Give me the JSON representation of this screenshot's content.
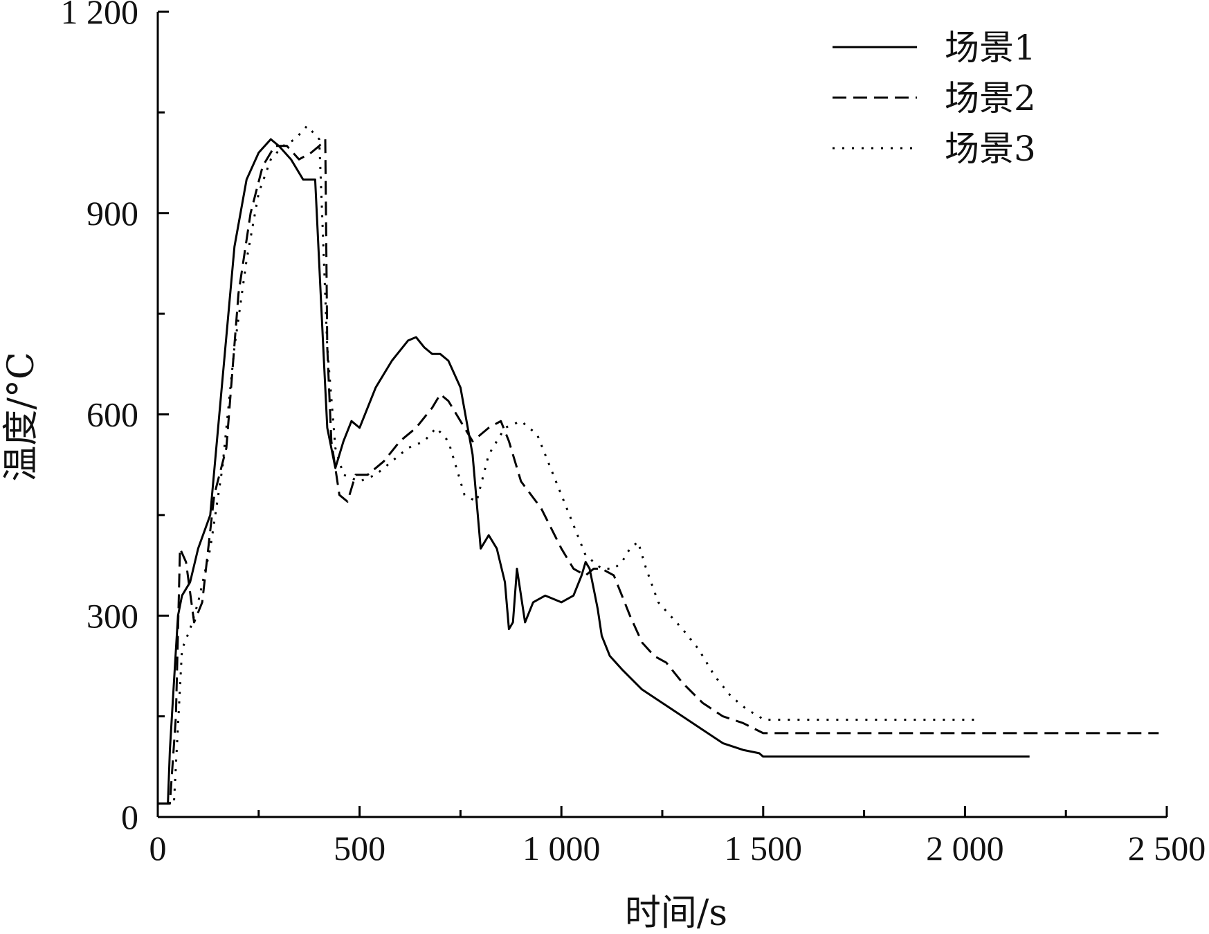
{
  "chart_data": {
    "type": "line",
    "xlabel": "时间/s",
    "ylabel": "温度/°C",
    "xlim": [
      0,
      2500
    ],
    "ylim": [
      0,
      1200
    ],
    "x_ticks": [
      0,
      500,
      1000,
      1500,
      2000,
      2500
    ],
    "x_tick_labels": [
      "0",
      "500",
      "1 000",
      "1 500",
      "2 000",
      "2 500"
    ],
    "y_ticks": [
      0,
      300,
      600,
      900,
      1200
    ],
    "y_tick_labels": [
      "0",
      "300",
      "600",
      "900",
      "1 200"
    ],
    "grid": false,
    "legend_position": "top-right",
    "series": [
      {
        "name": "场景1",
        "style": "solid",
        "x": [
          0,
          25,
          30,
          40,
          50,
          60,
          80,
          100,
          130,
          160,
          190,
          220,
          250,
          280,
          300,
          330,
          360,
          390,
          410,
          420,
          440,
          460,
          480,
          500,
          540,
          580,
          620,
          640,
          660,
          680,
          700,
          720,
          750,
          780,
          800,
          820,
          840,
          860,
          870,
          880,
          890,
          910,
          930,
          960,
          1000,
          1030,
          1050,
          1060,
          1070,
          1080,
          1090,
          1100,
          1120,
          1150,
          1200,
          1250,
          1300,
          1350,
          1400,
          1450,
          1490,
          1500,
          2160
        ],
        "y": [
          20,
          20,
          100,
          200,
          300,
          330,
          350,
          400,
          450,
          650,
          850,
          950,
          990,
          1010,
          1000,
          980,
          950,
          950,
          700,
          580,
          520,
          560,
          590,
          580,
          640,
          680,
          710,
          715,
          700,
          690,
          690,
          680,
          640,
          540,
          400,
          420,
          400,
          350,
          280,
          290,
          370,
          290,
          320,
          330,
          320,
          330,
          360,
          380,
          370,
          340,
          310,
          270,
          240,
          220,
          190,
          170,
          150,
          130,
          110,
          100,
          95,
          90,
          90
        ]
      },
      {
        "name": "场景2",
        "style": "dashed",
        "x": [
          0,
          30,
          45,
          55,
          70,
          90,
          110,
          140,
          170,
          200,
          230,
          260,
          290,
          320,
          350,
          380,
          400,
          415,
          420,
          430,
          450,
          470,
          490,
          520,
          560,
          600,
          640,
          680,
          700,
          720,
          750,
          780,
          820,
          850,
          870,
          900,
          950,
          1000,
          1030,
          1060,
          1080,
          1100,
          1130,
          1150,
          1170,
          1200,
          1230,
          1260,
          1300,
          1350,
          1400,
          1450,
          1500,
          2480
        ],
        "y": [
          20,
          20,
          150,
          400,
          380,
          290,
          320,
          480,
          550,
          780,
          900,
          970,
          1000,
          1000,
          980,
          990,
          1000,
          1010,
          700,
          560,
          480,
          470,
          510,
          510,
          530,
          560,
          580,
          610,
          630,
          620,
          590,
          560,
          580,
          590,
          560,
          500,
          460,
          400,
          370,
          360,
          370,
          370,
          360,
          330,
          300,
          260,
          240,
          230,
          200,
          170,
          150,
          140,
          125,
          125
        ]
      },
      {
        "name": "场景3",
        "style": "dotted",
        "x": [
          0,
          40,
          60,
          80,
          100,
          130,
          160,
          190,
          220,
          250,
          280,
          310,
          340,
          370,
          400,
          420,
          440,
          460,
          500,
          540,
          580,
          620,
          660,
          690,
          720,
          740,
          760,
          790,
          820,
          860,
          900,
          940,
          980,
          1020,
          1060,
          1100,
          1130,
          1150,
          1170,
          1190,
          1210,
          1240,
          1270,
          1300,
          1340,
          1380,
          1420,
          1460,
          1490,
          1500,
          2030
        ],
        "y": [
          20,
          20,
          250,
          280,
          320,
          400,
          520,
          700,
          830,
          930,
          980,
          1000,
          1010,
          1030,
          1010,
          700,
          550,
          510,
          500,
          510,
          530,
          550,
          560,
          580,
          560,
          520,
          480,
          470,
          540,
          580,
          590,
          570,
          510,
          450,
          390,
          370,
          370,
          380,
          400,
          410,
          370,
          320,
          300,
          280,
          250,
          210,
          180,
          160,
          150,
          145,
          145
        ]
      }
    ]
  }
}
